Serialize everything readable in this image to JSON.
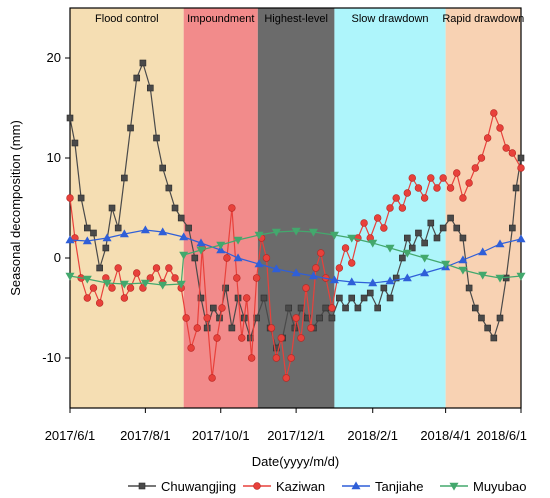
{
  "chart_data": {
    "type": "line",
    "title": "",
    "xlabel": "Date(yyyy/m/d)",
    "ylabel": "Seasonal decomposition (mm)",
    "x_ticks": [
      "2017/6/1",
      "2017/8/1",
      "2017/10/1",
      "2017/12/1",
      "2018/2/1",
      "2018/4/1",
      "2018/6/1"
    ],
    "x_range": [
      "2017/6/1",
      "2018/6/1"
    ],
    "ylim": [
      -15,
      25
    ],
    "y_ticks": [
      -10,
      0,
      10,
      20
    ],
    "grid": false,
    "legend_position": "bottom",
    "phases": [
      {
        "label": "Flood control",
        "start": "2017/6/1",
        "end": "2017/9/1",
        "color": "#f5deb3"
      },
      {
        "label": "Impoundment",
        "start": "2017/9/1",
        "end": "2017/10/31",
        "color": "#f28b8b"
      },
      {
        "label": "Highest-level",
        "start": "2017/10/31",
        "end": "2018/1/1",
        "color": "#6b6b6b"
      },
      {
        "label": "Slow drawdown",
        "start": "2018/1/1",
        "end": "2018/4/1",
        "color": "#aef5fb"
      },
      {
        "label": "Rapid drawdown",
        "start": "2018/4/1",
        "end": "2018/6/1",
        "color": "#f8d2b3"
      }
    ],
    "series": [
      {
        "name": "Chuwangjing",
        "color": "#4a4a4a",
        "marker": "square",
        "points": [
          [
            "2017/6/1",
            14
          ],
          [
            "2017/6/5",
            11.5
          ],
          [
            "2017/6/10",
            6
          ],
          [
            "2017/6/15",
            3
          ],
          [
            "2017/6/20",
            2.5
          ],
          [
            "2017/6/25",
            -1
          ],
          [
            "2017/6/30",
            1
          ],
          [
            "2017/7/5",
            5
          ],
          [
            "2017/7/10",
            3
          ],
          [
            "2017/7/15",
            8
          ],
          [
            "2017/7/20",
            13
          ],
          [
            "2017/7/25",
            18
          ],
          [
            "2017/7/30",
            19.5
          ],
          [
            "2017/8/5",
            17
          ],
          [
            "2017/8/10",
            12
          ],
          [
            "2017/8/15",
            9
          ],
          [
            "2017/8/20",
            7
          ],
          [
            "2017/8/25",
            5
          ],
          [
            "2017/8/30",
            4
          ],
          [
            "2017/9/5",
            3
          ],
          [
            "2017/9/10",
            0
          ],
          [
            "2017/9/15",
            -4
          ],
          [
            "2017/9/20",
            -7
          ],
          [
            "2017/9/25",
            -5
          ],
          [
            "2017/9/30",
            -6
          ],
          [
            "2017/10/5",
            -3
          ],
          [
            "2017/10/10",
            -7
          ],
          [
            "2017/10/15",
            -4
          ],
          [
            "2017/10/20",
            -6
          ],
          [
            "2017/10/25",
            -8
          ],
          [
            "2017/10/30",
            -6
          ],
          [
            "2017/11/5",
            -4
          ],
          [
            "2017/11/10",
            -7
          ],
          [
            "2017/11/15",
            -9
          ],
          [
            "2017/11/20",
            -8
          ],
          [
            "2017/11/25",
            -5
          ],
          [
            "2017/11/30",
            -7
          ],
          [
            "2017/12/5",
            -5
          ],
          [
            "2017/12/10",
            -6
          ],
          [
            "2017/12/15",
            -7
          ],
          [
            "2017/12/20",
            -6
          ],
          [
            "2017/12/25",
            -5
          ],
          [
            "2017/12/30",
            -6
          ],
          [
            "2018/1/5",
            -4
          ],
          [
            "2018/1/10",
            -5
          ],
          [
            "2018/1/15",
            -4
          ],
          [
            "2018/1/20",
            -5
          ],
          [
            "2018/1/25",
            -4
          ],
          [
            "2018/1/30",
            -3.5
          ],
          [
            "2018/2/5",
            -5
          ],
          [
            "2018/2/10",
            -3
          ],
          [
            "2018/2/15",
            -4
          ],
          [
            "2018/2/20",
            -2
          ],
          [
            "2018/2/25",
            0
          ],
          [
            "2018/3/1",
            2
          ],
          [
            "2018/3/5",
            1
          ],
          [
            "2018/3/10",
            2.5
          ],
          [
            "2018/3/15",
            1.5
          ],
          [
            "2018/3/20",
            3.5
          ],
          [
            "2018/3/25",
            2
          ],
          [
            "2018/3/30",
            3
          ],
          [
            "2018/4/5",
            4
          ],
          [
            "2018/4/10",
            3
          ],
          [
            "2018/4/15",
            2
          ],
          [
            "2018/4/20",
            -3
          ],
          [
            "2018/4/25",
            -5
          ],
          [
            "2018/4/30",
            -6
          ],
          [
            "2018/5/5",
            -7
          ],
          [
            "2018/5/10",
            -8
          ],
          [
            "2018/5/15",
            -6
          ],
          [
            "2018/5/20",
            -2
          ],
          [
            "2018/5/25",
            3
          ],
          [
            "2018/5/28",
            7
          ],
          [
            "2018/6/1",
            10
          ]
        ]
      },
      {
        "name": "Kaziwan",
        "color": "#e8413b",
        "marker": "circle",
        "points": [
          [
            "2017/6/1",
            6
          ],
          [
            "2017/6/5",
            2
          ],
          [
            "2017/6/10",
            -2
          ],
          [
            "2017/6/15",
            -4
          ],
          [
            "2017/6/20",
            -3
          ],
          [
            "2017/6/25",
            -4.5
          ],
          [
            "2017/6/30",
            -2
          ],
          [
            "2017/7/5",
            -3
          ],
          [
            "2017/7/10",
            -1
          ],
          [
            "2017/7/15",
            -4
          ],
          [
            "2017/7/20",
            -3
          ],
          [
            "2017/7/25",
            -1.5
          ],
          [
            "2017/7/30",
            -3
          ],
          [
            "2017/8/5",
            -2
          ],
          [
            "2017/8/10",
            -1
          ],
          [
            "2017/8/15",
            -2.5
          ],
          [
            "2017/8/20",
            -1
          ],
          [
            "2017/8/25",
            -2
          ],
          [
            "2017/8/30",
            -3
          ],
          [
            "2017/9/3",
            -6
          ],
          [
            "2017/9/7",
            -9
          ],
          [
            "2017/9/12",
            -7
          ],
          [
            "2017/9/16",
            1
          ],
          [
            "2017/9/20",
            -6
          ],
          [
            "2017/9/24",
            -12
          ],
          [
            "2017/9/28",
            -8
          ],
          [
            "2017/10/2",
            -5
          ],
          [
            "2017/10/6",
            0
          ],
          [
            "2017/10/10",
            5
          ],
          [
            "2017/10/14",
            -2
          ],
          [
            "2017/10/18",
            -8
          ],
          [
            "2017/10/22",
            -4
          ],
          [
            "2017/10/26",
            -10
          ],
          [
            "2017/10/30",
            -2
          ],
          [
            "2017/11/3",
            2
          ],
          [
            "2017/11/7",
            0
          ],
          [
            "2017/11/11",
            -7
          ],
          [
            "2017/11/15",
            -10
          ],
          [
            "2017/11/19",
            -8
          ],
          [
            "2017/11/23",
            -12
          ],
          [
            "2017/11/27",
            -10
          ],
          [
            "2017/12/1",
            -6
          ],
          [
            "2017/12/5",
            -8
          ],
          [
            "2017/12/9",
            -3
          ],
          [
            "2017/12/13",
            -7
          ],
          [
            "2017/12/17",
            -1
          ],
          [
            "2017/12/21",
            0.5
          ],
          [
            "2017/12/25",
            -2
          ],
          [
            "2017/12/30",
            -5
          ],
          [
            "2018/1/5",
            -1
          ],
          [
            "2018/1/10",
            1
          ],
          [
            "2018/1/15",
            -0.5
          ],
          [
            "2018/1/20",
            2
          ],
          [
            "2018/1/25",
            3.5
          ],
          [
            "2018/1/30",
            2
          ],
          [
            "2018/2/5",
            4
          ],
          [
            "2018/2/10",
            3
          ],
          [
            "2018/2/15",
            5
          ],
          [
            "2018/2/20",
            6
          ],
          [
            "2018/2/25",
            5
          ],
          [
            "2018/3/1",
            6.5
          ],
          [
            "2018/3/5",
            8
          ],
          [
            "2018/3/10",
            7
          ],
          [
            "2018/3/15",
            6
          ],
          [
            "2018/3/20",
            8
          ],
          [
            "2018/3/25",
            7
          ],
          [
            "2018/3/30",
            8
          ],
          [
            "2018/4/5",
            7
          ],
          [
            "2018/4/10",
            8.5
          ],
          [
            "2018/4/15",
            6
          ],
          [
            "2018/4/20",
            7.5
          ],
          [
            "2018/4/25",
            9
          ],
          [
            "2018/4/30",
            10
          ],
          [
            "2018/5/5",
            12
          ],
          [
            "2018/5/10",
            14.5
          ],
          [
            "2018/5/15",
            13
          ],
          [
            "2018/5/20",
            11
          ],
          [
            "2018/5/25",
            10.5
          ],
          [
            "2018/6/1",
            9
          ]
        ]
      },
      {
        "name": "Tanjiahe",
        "color": "#2f5fd8",
        "marker": "triangle-up",
        "points": [
          [
            "2017/6/1",
            1.8
          ],
          [
            "2017/6/15",
            1.7
          ],
          [
            "2017/7/1",
            2
          ],
          [
            "2017/7/15",
            2.4
          ],
          [
            "2017/8/1",
            2.8
          ],
          [
            "2017/8/15",
            2.6
          ],
          [
            "2017/9/1",
            2.1
          ],
          [
            "2017/9/15",
            1.5
          ],
          [
            "2017/10/1",
            0.8
          ],
          [
            "2017/10/15",
            0
          ],
          [
            "2017/11/1",
            -0.6
          ],
          [
            "2017/11/15",
            -1.1
          ],
          [
            "2017/12/1",
            -1.5
          ],
          [
            "2017/12/15",
            -1.8
          ],
          [
            "2018/1/1",
            -2.2
          ],
          [
            "2018/1/15",
            -2.4
          ],
          [
            "2018/2/1",
            -2.5
          ],
          [
            "2018/2/15",
            -2.3
          ],
          [
            "2018/3/1",
            -2
          ],
          [
            "2018/3/15",
            -1.5
          ],
          [
            "2018/4/1",
            -0.9
          ],
          [
            "2018/4/15",
            -0.2
          ],
          [
            "2018/5/1",
            0.6
          ],
          [
            "2018/5/15",
            1.4
          ],
          [
            "2018/6/1",
            1.9
          ]
        ]
      },
      {
        "name": "Muyubao",
        "color": "#43a86d",
        "marker": "triangle-down",
        "points": [
          [
            "2017/6/1",
            -1.8
          ],
          [
            "2017/6/15",
            -2.1
          ],
          [
            "2017/7/1",
            -2.5
          ],
          [
            "2017/7/15",
            -2.6
          ],
          [
            "2017/8/1",
            -2.5
          ],
          [
            "2017/8/15",
            -2.7
          ],
          [
            "2017/8/30",
            -2.6
          ],
          [
            "2017/9/1",
            0.3
          ],
          [
            "2017/9/15",
            0.8
          ],
          [
            "2017/10/1",
            1.3
          ],
          [
            "2017/10/15",
            1.8
          ],
          [
            "2017/11/1",
            2.3
          ],
          [
            "2017/11/15",
            2.6
          ],
          [
            "2017/12/1",
            2.7
          ],
          [
            "2017/12/15",
            2.6
          ],
          [
            "2018/1/1",
            2.3
          ],
          [
            "2018/1/15",
            2
          ],
          [
            "2018/2/1",
            1.5
          ],
          [
            "2018/2/15",
            1
          ],
          [
            "2018/3/1",
            0.5
          ],
          [
            "2018/3/15",
            0
          ],
          [
            "2018/4/1",
            -0.6
          ],
          [
            "2018/4/15",
            -1.2
          ],
          [
            "2018/5/1",
            -1.7
          ],
          [
            "2018/5/15",
            -2
          ],
          [
            "2018/6/1",
            -1.8
          ]
        ]
      }
    ]
  }
}
